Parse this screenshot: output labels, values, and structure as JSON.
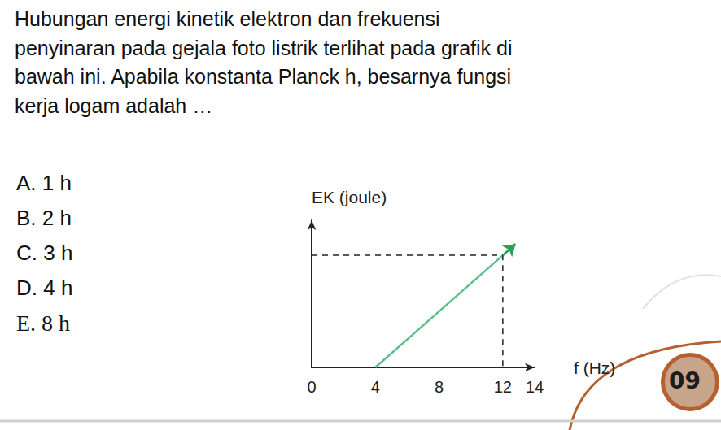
{
  "question_lines": [
    "Hubungan energi kinetik elektron dan frekuensi",
    "penyinaran pada gejala foto listrik terlihat pada grafik di",
    "bawah ini. Apabila konstanta Planck h, besarnya fungsi",
    "kerja logam adalah …"
  ],
  "options": [
    "A. 1 h",
    "B. 2 h",
    "C. 3 h",
    "D. 4 h",
    "E. 8 h"
  ],
  "page_number": "09",
  "chart_data": {
    "type": "line",
    "x_label": "f (Hz)",
    "y_label": "EK (joule)",
    "x": [
      4,
      12,
      12.8
    ],
    "values": [
      0,
      8,
      8.8
    ],
    "color": "#5cc08a",
    "line_style": "solid",
    "dashed_guides": [
      {
        "x": 12,
        "y": 8
      }
    ],
    "xlim": [
      0,
      14
    ],
    "xticks": [
      0,
      4,
      8,
      12
    ],
    "ylim": [
      0,
      10.5
    ],
    "yticks": [],
    "grid": false,
    "tick_labels": "x"
  }
}
